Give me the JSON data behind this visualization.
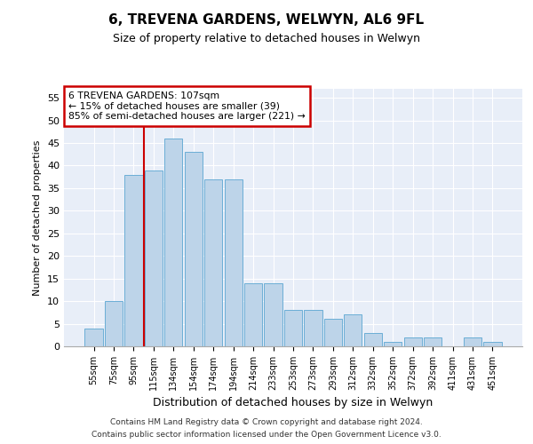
{
  "title": "6, TREVENA GARDENS, WELWYN, AL6 9FL",
  "subtitle": "Size of property relative to detached houses in Welwyn",
  "xlabel": "Distribution of detached houses by size in Welwyn",
  "ylabel": "Number of detached properties",
  "bar_labels": [
    "55sqm",
    "75sqm",
    "95sqm",
    "115sqm",
    "134sqm",
    "154sqm",
    "174sqm",
    "194sqm",
    "214sqm",
    "233sqm",
    "253sqm",
    "273sqm",
    "293sqm",
    "312sqm",
    "332sqm",
    "352sqm",
    "372sqm",
    "392sqm",
    "411sqm",
    "431sqm",
    "451sqm"
  ],
  "bar_values": [
    4,
    10,
    38,
    39,
    46,
    43,
    37,
    37,
    14,
    14,
    8,
    8,
    6,
    7,
    3,
    1,
    2,
    2,
    0,
    2,
    1
  ],
  "bar_color": "#bdd4e9",
  "bar_edge_color": "#6baed6",
  "vline_color": "#cc0000",
  "annotation_text": "6 TREVENA GARDENS: 107sqm\n← 15% of detached houses are smaller (39)\n85% of semi-detached houses are larger (221) →",
  "annotation_box_color": "#ffffff",
  "annotation_box_edge_color": "#cc0000",
  "ylim": [
    0,
    57
  ],
  "yticks": [
    0,
    5,
    10,
    15,
    20,
    25,
    30,
    35,
    40,
    45,
    50,
    55
  ],
  "bg_color": "#e8eef8",
  "footer1": "Contains HM Land Registry data © Crown copyright and database right 2024.",
  "footer2": "Contains public sector information licensed under the Open Government Licence v3.0."
}
